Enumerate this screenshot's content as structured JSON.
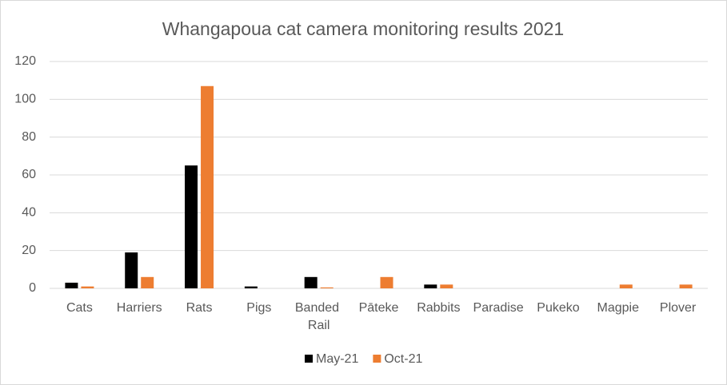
{
  "chart_data": {
    "type": "bar",
    "title": "Whangapoua cat camera monitoring results 2021",
    "categories": [
      "Cats",
      "Harriers",
      "Rats",
      "Pigs",
      "Banded Rail",
      "Pāteke",
      "Rabbits",
      "Paradise",
      "Pukeko",
      "Magpie",
      "Plover"
    ],
    "series": [
      {
        "name": "May-21",
        "color": "#000000",
        "values": [
          3,
          19,
          65,
          1,
          6,
          0,
          2,
          0,
          0,
          0,
          0
        ]
      },
      {
        "name": "Oct-21",
        "color": "#ed7d31",
        "values": [
          1,
          6,
          107,
          0,
          0.5,
          6,
          2,
          0,
          0,
          2,
          2
        ]
      }
    ],
    "ylim": [
      0,
      120
    ],
    "yticks": [
      0,
      20,
      40,
      60,
      80,
      100,
      120
    ],
    "grid": true,
    "legend": "bottom"
  }
}
